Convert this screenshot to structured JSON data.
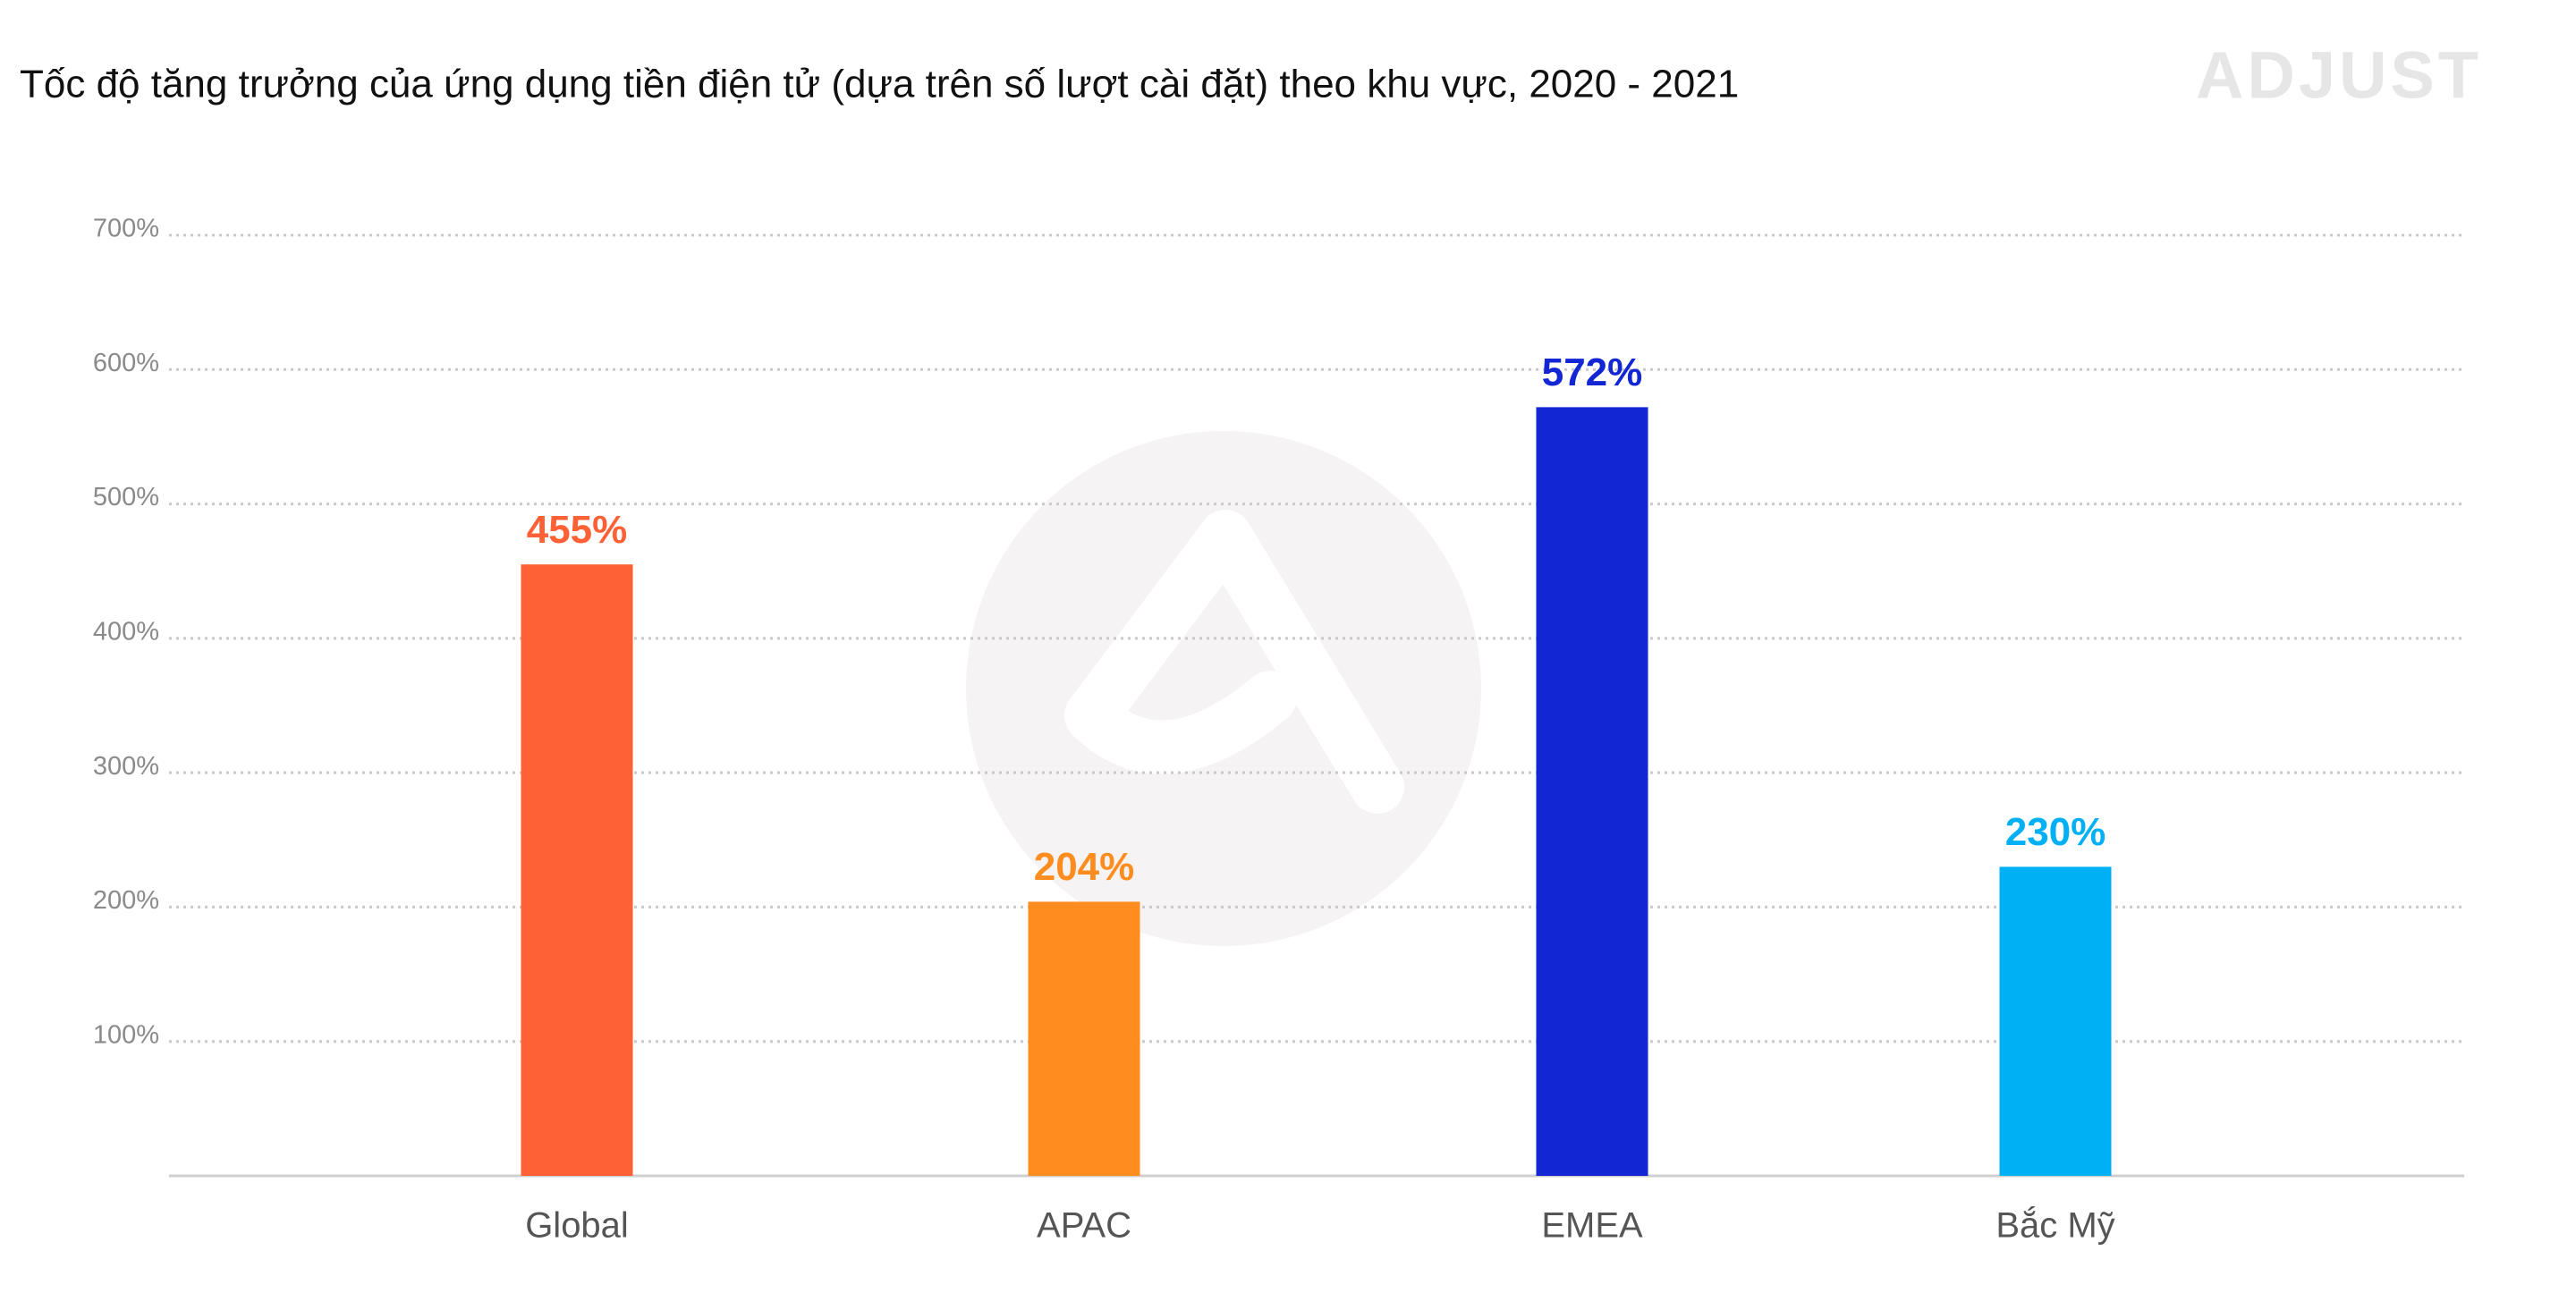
{
  "chart_data": {
    "type": "bar",
    "title": "Tốc độ tăng trưởng của ứng dụng tiền điện tử (dựa trên số lượt cài đặt) theo khu vực, 2020 - 2021",
    "logo": "ADJUST",
    "categories": [
      "Global",
      "APAC",
      "EMEA",
      "Bắc Mỹ"
    ],
    "values": [
      455,
      204,
      572,
      230
    ],
    "value_labels": [
      "455%",
      "204%",
      "572%",
      "230%"
    ],
    "colors": [
      "#ff6136",
      "#ff8c1f",
      "#1226d4",
      "#00b0f5"
    ],
    "ylim": [
      0,
      700
    ],
    "yticks": [
      {
        "value": 100,
        "label": "100%"
      },
      {
        "value": 200,
        "label": "200%"
      },
      {
        "value": 300,
        "label": "300%"
      },
      {
        "value": 400,
        "label": "400%"
      },
      {
        "value": 500,
        "label": "500%"
      },
      {
        "value": 600,
        "label": "600%"
      },
      {
        "value": 700,
        "label": "700%"
      }
    ],
    "grid": true
  }
}
